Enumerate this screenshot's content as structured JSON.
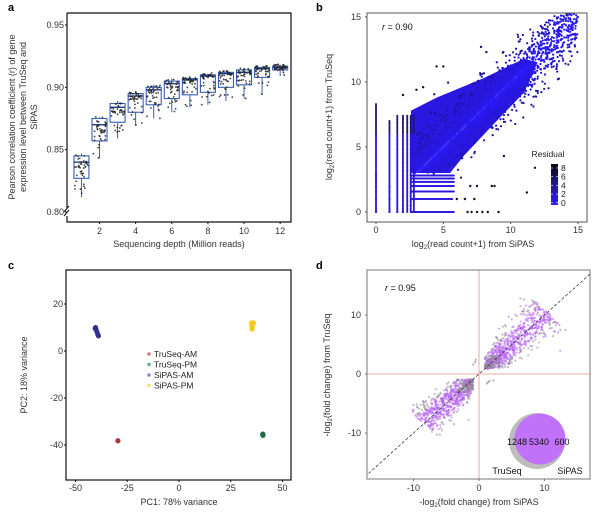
{
  "figure": {
    "panels": [
      "a",
      "b",
      "c",
      "d"
    ]
  },
  "chart_data": [
    {
      "panel": "a",
      "type": "box",
      "title": "",
      "xlabel": "Sequencing depth (Million reads)",
      "ylabel_lines": [
        "Pearson correlation coefficient (r) of gene",
        "expression level between TruSeq and",
        "SiPAS"
      ],
      "xticks": [
        "2",
        "4",
        "6",
        "8",
        "10",
        "12"
      ],
      "yticks": [
        "0.80",
        "0.85",
        "0.90",
        "0.95"
      ],
      "xlim": [
        0.2,
        12.6
      ],
      "ylim": [
        0.8,
        0.955
      ],
      "box_color": "#3a5fb8",
      "point_color": "#222222",
      "categories": [
        1,
        2,
        3,
        4,
        5,
        6,
        7,
        8,
        9,
        10,
        11,
        12
      ],
      "boxes": [
        {
          "x": 1,
          "q1": 0.827,
          "median": 0.84,
          "q3": 0.845,
          "lower": 0.812,
          "upper": 0.847
        },
        {
          "x": 2,
          "q1": 0.857,
          "median": 0.87,
          "q3": 0.875,
          "lower": 0.843,
          "upper": 0.876
        },
        {
          "x": 3,
          "q1": 0.872,
          "median": 0.884,
          "q3": 0.887,
          "lower": 0.859,
          "upper": 0.889
        },
        {
          "x": 4,
          "q1": 0.88,
          "median": 0.893,
          "q3": 0.895,
          "lower": 0.869,
          "upper": 0.897
        },
        {
          "x": 5,
          "q1": 0.886,
          "median": 0.898,
          "q3": 0.9,
          "lower": 0.875,
          "upper": 0.902
        },
        {
          "x": 6,
          "q1": 0.891,
          "median": 0.903,
          "q3": 0.905,
          "lower": 0.88,
          "upper": 0.907
        },
        {
          "x": 7,
          "q1": 0.894,
          "median": 0.906,
          "q3": 0.907,
          "lower": 0.884,
          "upper": 0.909
        },
        {
          "x": 8,
          "q1": 0.896,
          "median": 0.909,
          "q3": 0.91,
          "lower": 0.886,
          "upper": 0.911
        },
        {
          "x": 9,
          "q1": 0.9,
          "median": 0.911,
          "q3": 0.912,
          "lower": 0.889,
          "upper": 0.913
        },
        {
          "x": 10,
          "q1": 0.902,
          "median": 0.912,
          "q3": 0.914,
          "lower": 0.891,
          "upper": 0.915
        },
        {
          "x": 11,
          "q1": 0.908,
          "median": 0.915,
          "q3": 0.916,
          "lower": 0.894,
          "upper": 0.917
        },
        {
          "x": 12,
          "q1": 0.914,
          "median": 0.916,
          "q3": 0.917,
          "lower": 0.909,
          "upper": 0.918
        }
      ]
    },
    {
      "panel": "b",
      "type": "scatter",
      "xlabel_prefix": "log",
      "xlabel_sub": "2",
      "xlabel_suffix": "(read count+1) from SiPAS",
      "ylabel_prefix": "log",
      "ylabel_sub": "2",
      "ylabel_suffix": "(read count+1) from TruSeq",
      "annotation": "r = 0.90",
      "r_value": 0.9,
      "xticks": [
        "0",
        "5",
        "10",
        "15"
      ],
      "yticks": [
        "0",
        "5",
        "10",
        "15"
      ],
      "xlim": [
        -0.7,
        15.7
      ],
      "ylim": [
        -1.3,
        15.4
      ],
      "legend": {
        "title": "Residual",
        "ticks": [
          "8",
          "6",
          "4",
          "2",
          "0"
        ],
        "low_color": "#2a1aff",
        "high_color": "#0a0a1a",
        "placement": "bottom-right"
      },
      "point_color": "#2a17d9",
      "discrete_x_columns": [
        0,
        1,
        1.58,
        2,
        2.32,
        2.58,
        2.81
      ],
      "discrete_y_rows": [
        0,
        1,
        1.58,
        2,
        2.32,
        2.58,
        2.81
      ],
      "outliers": [
        [
          11.8,
          3.4
        ],
        [
          11.2,
          1.5
        ],
        [
          8.6,
          2.0
        ],
        [
          8.8,
          2.0
        ],
        [
          9.1,
          0
        ],
        [
          8.3,
          0
        ],
        [
          7.9,
          0
        ],
        [
          7.5,
          0
        ],
        [
          7.1,
          0
        ],
        [
          6.8,
          0
        ],
        [
          7.3,
          1
        ],
        [
          6.6,
          1
        ],
        [
          6.0,
          1
        ],
        [
          7.5,
          2
        ],
        [
          7.0,
          2
        ],
        [
          2.0,
          9.0
        ],
        [
          3.0,
          9.4
        ],
        [
          3.5,
          9.6
        ],
        [
          4.5,
          11.2
        ],
        [
          5.0,
          11.2
        ],
        [
          7.8,
          12.7
        ],
        [
          8.2,
          12.3
        ],
        [
          9.5,
          4.3
        ],
        [
          13.4,
          11.0
        ],
        [
          14.8,
          13.7
        ]
      ]
    },
    {
      "panel": "c",
      "type": "scatter",
      "xlabel": "PC1: 78% variance",
      "ylabel": "PC2: 18% variance",
      "xticks": [
        "-50",
        "-25",
        "0",
        "25",
        "50"
      ],
      "yticks": [
        "-40",
        "-20",
        "0",
        "20"
      ],
      "xlim": [
        -55,
        53
      ],
      "ylim": [
        -54,
        34
      ],
      "legend_placement": "center",
      "series": [
        {
          "name": "TruSeq-AM",
          "color": "#a31f2a",
          "legend_color": "#d47a80",
          "points": [
            [
              -29.5,
              -38.2
            ]
          ]
        },
        {
          "name": "TruSeq-PM",
          "color": "#1d6e45",
          "legend_color": "#6cac8a",
          "points": [
            [
              40.5,
              -35.3
            ],
            [
              40.6,
              -35.9
            ],
            [
              40.4,
              -35.6
            ]
          ]
        },
        {
          "name": "SiPAS-AM",
          "color": "#2b2f8f",
          "legend_color": "#8a8ec4",
          "points": [
            [
              -40.3,
              10.0
            ],
            [
              -40.0,
              9.0
            ],
            [
              -39.6,
              8.0
            ],
            [
              -39.2,
              7.0
            ],
            [
              -38.9,
              6.4
            ],
            [
              -40.5,
              9.6
            ]
          ]
        },
        {
          "name": "SiPAS-PM",
          "color": "#f5c918",
          "legend_color": "#f8de6a",
          "points": [
            [
              35.0,
              12.0
            ],
            [
              35.6,
              11.5
            ],
            [
              35.2,
              10.7
            ],
            [
              35.4,
              10.0
            ],
            [
              35.3,
              9.3
            ],
            [
              36.0,
              12.0
            ]
          ]
        }
      ]
    },
    {
      "panel": "d",
      "type": "scatter",
      "xlabel_prefix": "-log",
      "xlabel_sub": "2",
      "xlabel_suffix": "(fold change) from SiPAS",
      "ylabel_prefix": "-log",
      "ylabel_sub": "2",
      "ylabel_suffix": "(fold change) from TruSeq",
      "annotation": "r = 0.95",
      "r_value": 0.95,
      "xticks": [
        "-10",
        "0",
        "10"
      ],
      "yticks": [
        "-10",
        "0",
        "10"
      ],
      "xlim": [
        -17.1,
        17.0
      ],
      "ylim": [
        -17.8,
        17.6
      ],
      "reference_lines": {
        "identity": "dashed black",
        "zero_lines_color": "#e8908a"
      },
      "point_colors": {
        "both": "#b560f2",
        "single": "#8c8c8c"
      },
      "venn": {
        "sets": [
          {
            "name": "TruSeq",
            "only": 1248,
            "color": "#bdbdbd"
          },
          {
            "name": "SiPAS",
            "only": 600,
            "color": "#c172fb"
          }
        ],
        "intersection": 5340,
        "labels": {
          "left": "1248",
          "center": "5340",
          "right": "600",
          "set_left": "TruSeq",
          "set_right": "SiPAS"
        },
        "placement": "bottom-right"
      }
    }
  ]
}
